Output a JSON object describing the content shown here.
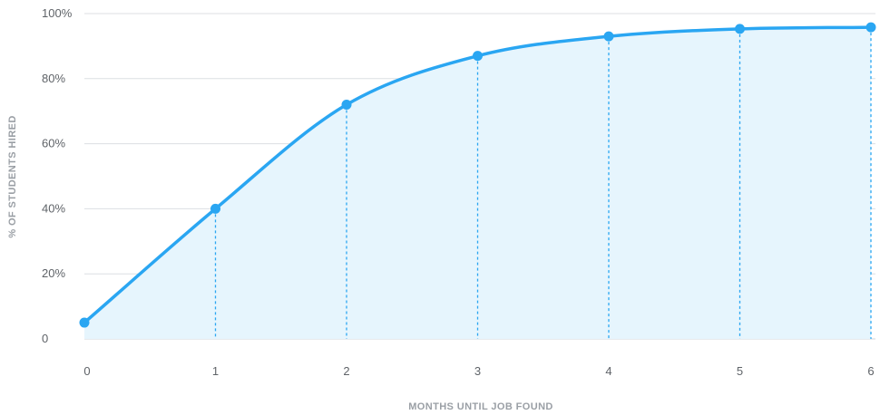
{
  "chart_data": {
    "type": "line",
    "xlabel": "MONTHS UNTIL JOB FOUND",
    "ylabel": "% OF STUDENTS HIRED",
    "x": [
      0,
      1,
      2,
      3,
      4,
      5,
      6
    ],
    "series": [
      {
        "values": [
          5,
          40,
          72,
          87,
          93,
          95.3,
          95.8
        ]
      }
    ],
    "xlim": [
      0,
      6
    ],
    "ylim": [
      0,
      100
    ],
    "y_ticks": [
      0,
      20,
      40,
      60,
      80,
      100
    ],
    "y_tick_labels": [
      "0",
      "20%",
      "40%",
      "60%",
      "80%",
      "100%"
    ],
    "x_tick_labels": [
      "0",
      "1",
      "2",
      "3",
      "4",
      "5",
      "6"
    ],
    "grid": true,
    "area_fill": true,
    "colors": {
      "line": "#2aa6f2",
      "fill": "#e6f5fd",
      "grid": "#dcdfe3"
    }
  }
}
